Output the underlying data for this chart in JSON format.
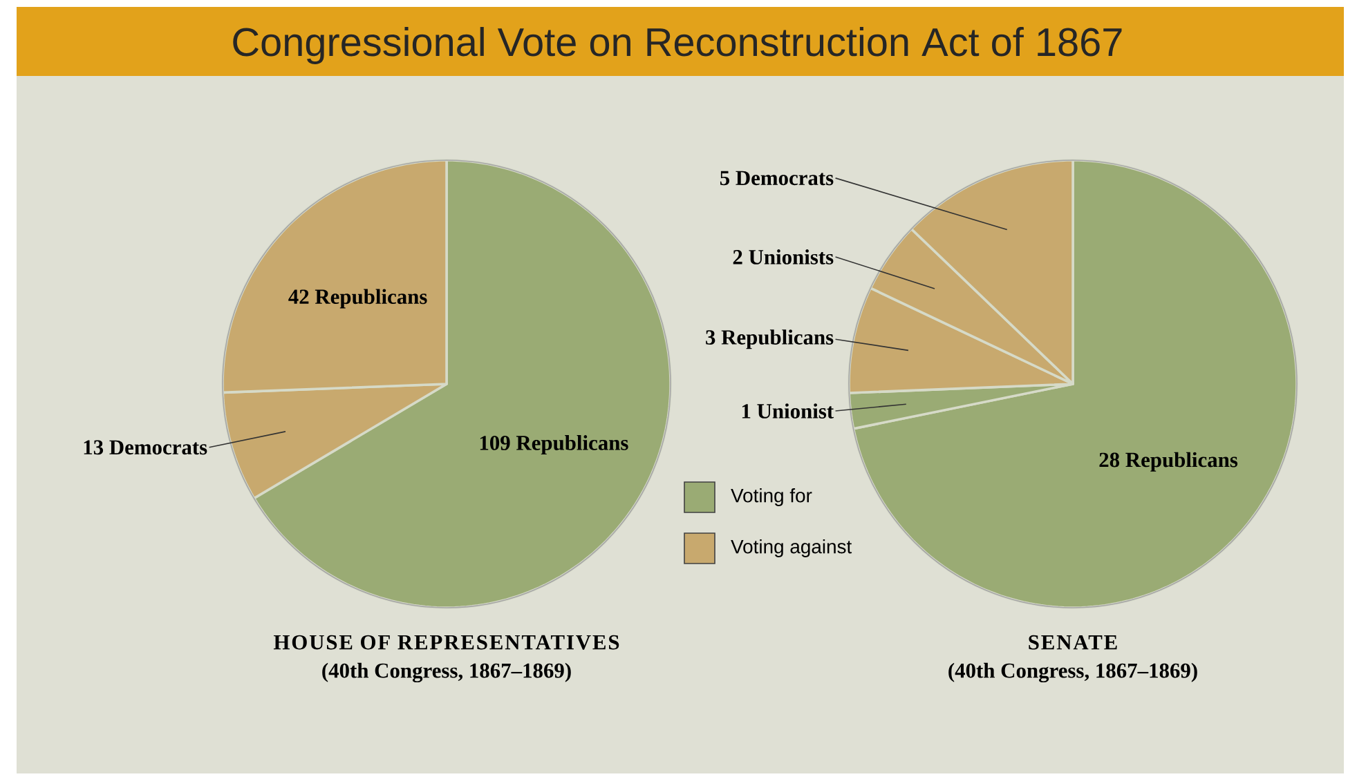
{
  "chart_data": [
    {
      "type": "pie",
      "title": "Congressional Vote on Reconstruction Act of 1867",
      "xlabel": "HOUSE OF REPRESENTATIVES",
      "annotations": [
        "(40th Congress, 1867–1869)"
      ],
      "categories": [
        "109 Republicans",
        "13 Democrats",
        "42 Republicans"
      ],
      "values": [
        109,
        13,
        42
      ],
      "colors": [
        "#9aab74",
        "#c8a96e",
        "#c8a96e"
      ]
    },
    {
      "type": "pie",
      "xlabel": "SENATE",
      "annotations": [
        "(40th Congress, 1867–1869)"
      ],
      "categories": [
        "28 Republicans",
        "1 Unionist",
        "3 Republicans",
        "2 Unionists",
        "5 Democrats"
      ],
      "values": [
        28,
        1,
        3,
        2,
        5
      ],
      "colors": [
        "#9aab74",
        "#9aab74",
        "#c8a96e",
        "#c8a96e",
        "#c8a96e"
      ]
    },
    {
      "type": "other",
      "annotations": [
        "Voting for",
        "Voting against"
      ]
    }
  ]
}
